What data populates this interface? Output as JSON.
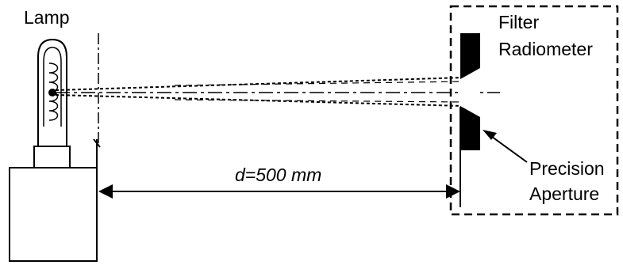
{
  "labels": {
    "lamp": "Lamp",
    "filter_line1": "Filter",
    "filter_line2": "Radiometer",
    "aperture_line1": "Precision",
    "aperture_line2": "Aperture",
    "distance": "d=500 mm"
  },
  "colors": {
    "ink": "#000000",
    "background": "#ffffff"
  }
}
